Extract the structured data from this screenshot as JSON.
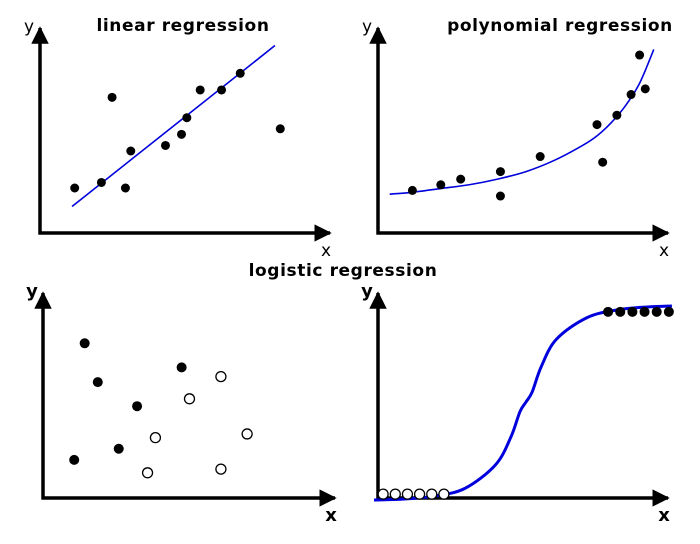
{
  "titles": {
    "linear": "linear regression",
    "polynomial": "polynomial regression",
    "logistic": "logistic regression"
  },
  "axis_labels": {
    "x": "x",
    "y": "y"
  },
  "colors": {
    "curve": "#0000dd",
    "point": "#000000",
    "axis": "#000000",
    "open_point_fill": "#ffffff"
  },
  "chart_data": [
    {
      "type": "scatter",
      "name": "linear",
      "xlabel": "x",
      "ylabel": "y",
      "xlim": [
        0,
        100
      ],
      "ylim": [
        0,
        100
      ],
      "points": [
        {
          "x": 10,
          "y": 20
        },
        {
          "x": 20,
          "y": 23
        },
        {
          "x": 24,
          "y": 69
        },
        {
          "x": 29,
          "y": 20
        },
        {
          "x": 31,
          "y": 40
        },
        {
          "x": 44,
          "y": 43
        },
        {
          "x": 50,
          "y": 49
        },
        {
          "x": 52,
          "y": 58
        },
        {
          "x": 57,
          "y": 73
        },
        {
          "x": 65,
          "y": 73
        },
        {
          "x": 72,
          "y": 82
        },
        {
          "x": 87,
          "y": 52
        }
      ],
      "fit": {
        "kind": "line",
        "x": [
          9,
          85
        ],
        "y": [
          10,
          97
        ]
      }
    },
    {
      "type": "scatter",
      "name": "polynomial",
      "xlabel": "x",
      "ylabel": "y",
      "xlim": [
        0,
        100
      ],
      "ylim": [
        0,
        100
      ],
      "points": [
        {
          "x": 10,
          "y": 20
        },
        {
          "x": 20,
          "y": 23
        },
        {
          "x": 27,
          "y": 26
        },
        {
          "x": 41,
          "y": 30
        },
        {
          "x": 41,
          "y": 17
        },
        {
          "x": 55,
          "y": 38
        },
        {
          "x": 75,
          "y": 55
        },
        {
          "x": 77,
          "y": 35
        },
        {
          "x": 82,
          "y": 60
        },
        {
          "x": 87,
          "y": 71
        },
        {
          "x": 90,
          "y": 92
        },
        {
          "x": 92,
          "y": 74
        }
      ],
      "fit": {
        "kind": "polynomial",
        "x": [
          2,
          10,
          20,
          30,
          40,
          50,
          60,
          70,
          75,
          80,
          85,
          90,
          95
        ],
        "y": [
          18,
          19,
          21,
          23,
          26,
          30,
          36,
          44,
          49,
          56,
          65,
          77,
          95
        ]
      }
    },
    {
      "type": "scatter",
      "name": "logistic-scatter",
      "xlabel": "x",
      "ylabel": "y",
      "xlim": [
        0,
        100
      ],
      "ylim": [
        0,
        100
      ],
      "points": [
        {
          "x": 14,
          "y": 82,
          "filled": true
        },
        {
          "x": 19,
          "y": 61,
          "filled": true
        },
        {
          "x": 34,
          "y": 48,
          "filled": true
        },
        {
          "x": 51,
          "y": 69,
          "filled": true
        },
        {
          "x": 27,
          "y": 25,
          "filled": true
        },
        {
          "x": 10,
          "y": 19,
          "filled": true
        },
        {
          "x": 66,
          "y": 64,
          "filled": false
        },
        {
          "x": 54,
          "y": 52,
          "filled": false
        },
        {
          "x": 41,
          "y": 31,
          "filled": false
        },
        {
          "x": 76,
          "y": 33,
          "filled": false
        },
        {
          "x": 38,
          "y": 12,
          "filled": false
        },
        {
          "x": 66,
          "y": 14,
          "filled": false
        }
      ]
    },
    {
      "type": "scatter",
      "name": "logistic-curve",
      "xlabel": "x",
      "ylabel": "y",
      "xlim": [
        0,
        100
      ],
      "ylim": [
        0,
        100
      ],
      "points": [
        {
          "x": 3,
          "y": 3,
          "filled": false
        },
        {
          "x": 7,
          "y": 3,
          "filled": false
        },
        {
          "x": 11,
          "y": 3,
          "filled": false
        },
        {
          "x": 15,
          "y": 3,
          "filled": false
        },
        {
          "x": 19,
          "y": 3,
          "filled": false
        },
        {
          "x": 23,
          "y": 3,
          "filled": false
        },
        {
          "x": 77,
          "y": 96,
          "filled": true
        },
        {
          "x": 81,
          "y": 96,
          "filled": true
        },
        {
          "x": 85,
          "y": 96,
          "filled": true
        },
        {
          "x": 89,
          "y": 96,
          "filled": true
        },
        {
          "x": 93,
          "y": 96,
          "filled": true
        },
        {
          "x": 97,
          "y": 96,
          "filled": true
        }
      ],
      "fit": {
        "kind": "sigmoid",
        "x": [
          0,
          10,
          20,
          30,
          40,
          45,
          48,
          50,
          52,
          55,
          60,
          70,
          80,
          90,
          98
        ],
        "y": [
          0,
          0.5,
          2,
          6,
          18,
          32,
          45,
          50,
          55,
          68,
          82,
          93,
          97,
          98.5,
          99
        ]
      }
    }
  ]
}
